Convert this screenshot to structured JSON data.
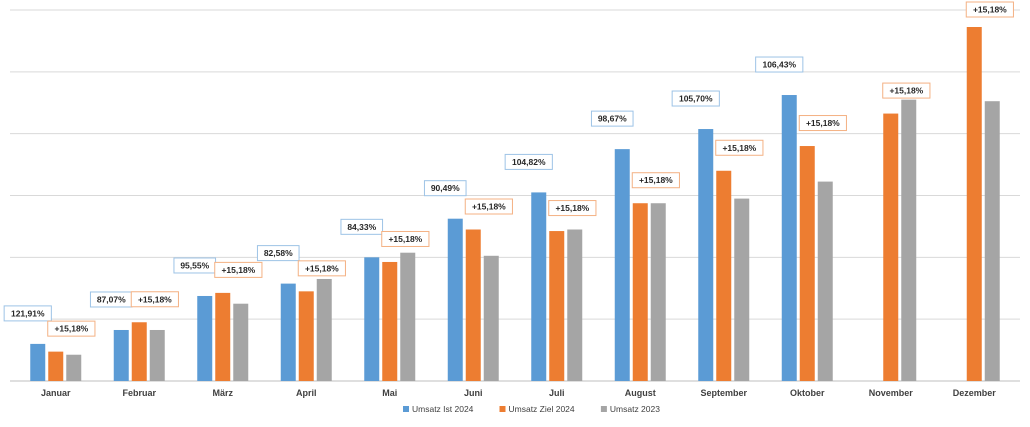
{
  "chart_data": {
    "type": "bar",
    "title": "",
    "xlabel": "",
    "ylabel": "",
    "ylim": [
      0,
      120
    ],
    "grid": true,
    "legend_position": "bottom",
    "categories": [
      "Januar",
      "Februar",
      "März",
      "April",
      "Mai",
      "Juni",
      "Juli",
      "August",
      "September",
      "Oktober",
      "November",
      "Dezember"
    ],
    "series": [
      {
        "name": "Umsatz Ist 2024",
        "color": "#5B9BD5",
        "values": [
          12,
          16.5,
          27.5,
          31.5,
          40,
          52.5,
          61,
          75,
          81.5,
          92.5,
          null,
          null
        ],
        "labels": [
          "121,91%",
          "87,07%",
          "95,55%",
          "82,58%",
          "84,33%",
          "90,49%",
          "104,82%",
          "98,67%",
          "105,70%",
          "106,43%",
          "",
          ""
        ],
        "label_border": "#9DC3E6"
      },
      {
        "name": "Umsatz Ziel 2024",
        "color": "#ED7D31",
        "values": [
          9.5,
          19,
          28.5,
          29,
          38.5,
          49,
          48.5,
          57.5,
          68,
          76,
          86.5,
          114.5
        ],
        "labels": [
          "+15,18%",
          "+15,18%",
          "+15,18%",
          "+15,18%",
          "+15,18%",
          "+15,18%",
          "+15,18%",
          "+15,18%",
          "+15,18%",
          "+15,18%",
          "+15,18%",
          "+15,18%"
        ],
        "label_border": "#F4B183"
      },
      {
        "name": "Umsatz  2023",
        "color": "#A5A5A5",
        "values": [
          8.5,
          16.5,
          25,
          33,
          41.5,
          40.5,
          49,
          57.5,
          59,
          64.5,
          91,
          90.5
        ]
      }
    ]
  }
}
